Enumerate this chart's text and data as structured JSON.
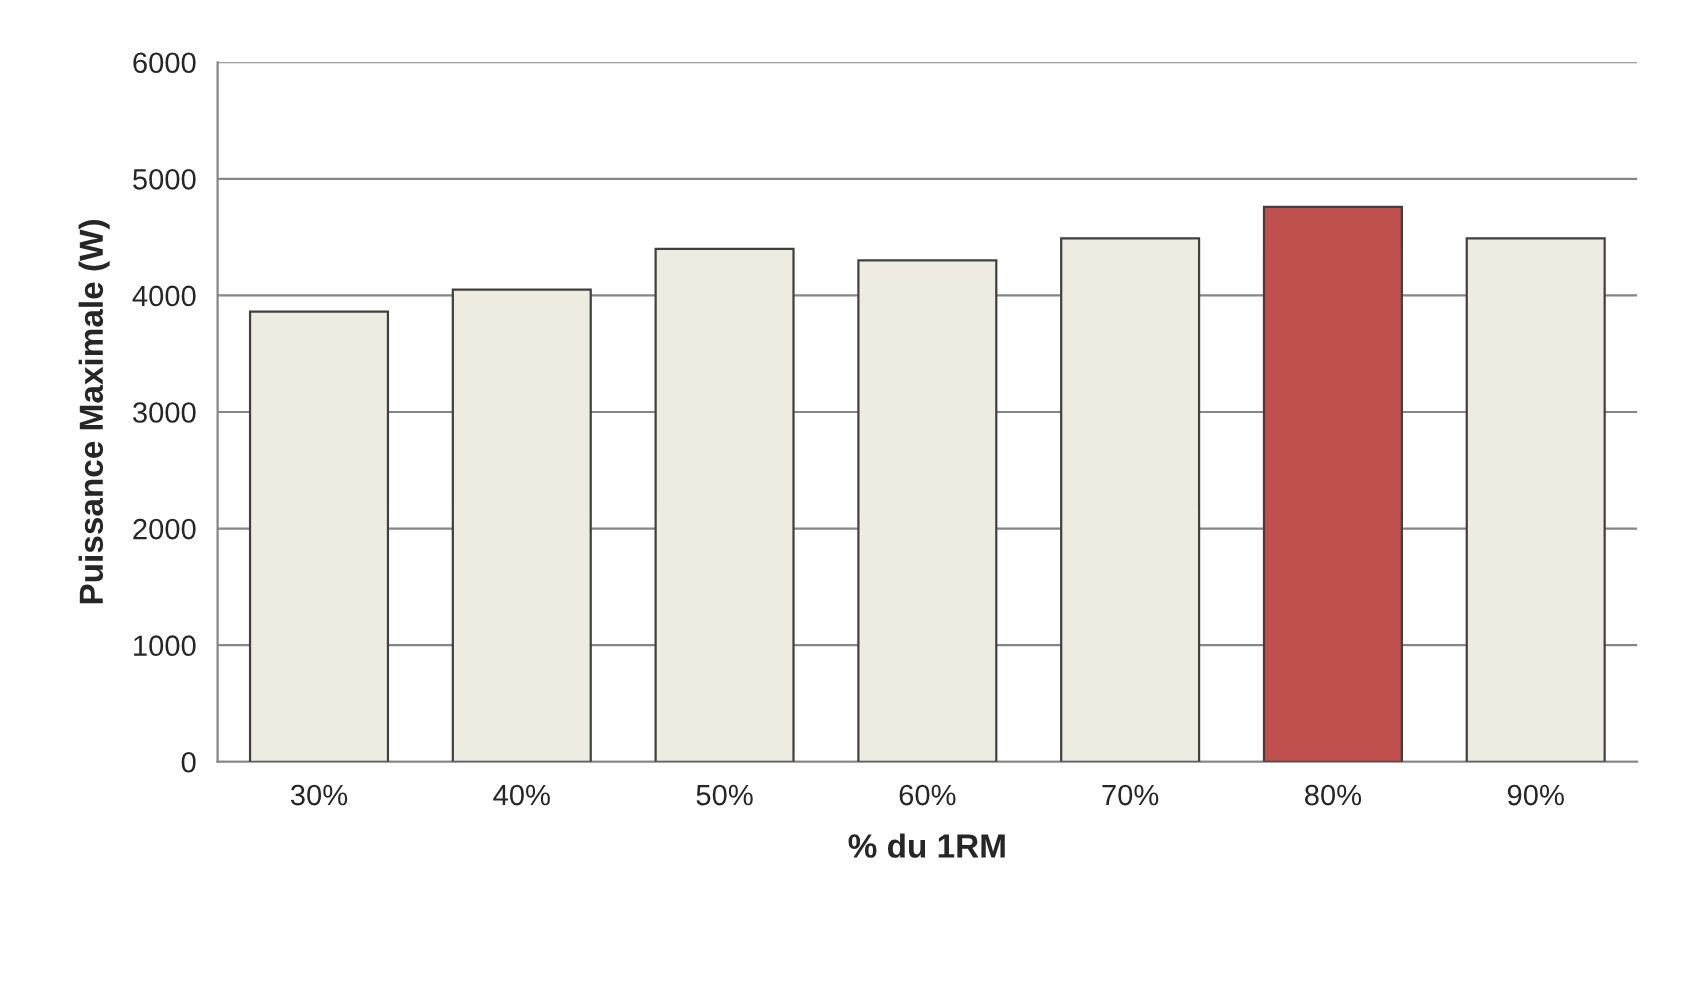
{
  "chart_data": {
    "type": "bar",
    "xlabel": "% du 1RM",
    "ylabel": "Puissance Maximale (W)",
    "categories": [
      "30%",
      "40%",
      "50%",
      "60%",
      "70%",
      "80%",
      "90%"
    ],
    "values": [
      3860,
      4050,
      4400,
      4300,
      4490,
      4760,
      4490
    ],
    "colors": [
      "#eeece1",
      "#eeece1",
      "#eeece1",
      "#eeece1",
      "#eeece1",
      "#c0504d",
      "#eeece1"
    ],
    "ylim": [
      0,
      6000
    ],
    "yticks": [
      0,
      1000,
      2000,
      3000,
      4000,
      5000,
      6000
    ],
    "grid": "y",
    "legend": false
  }
}
